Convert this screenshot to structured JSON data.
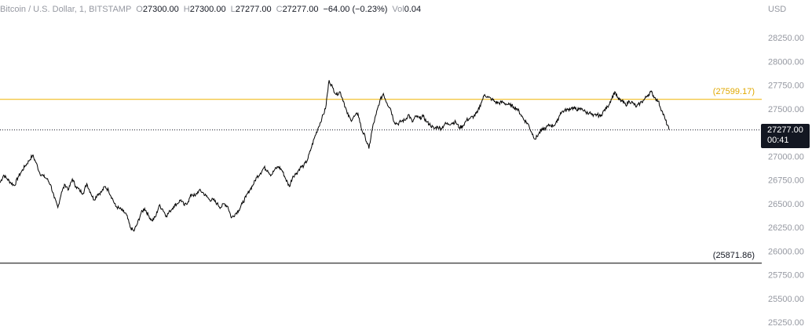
{
  "header": {
    "symbol": "Bitcoin / U.S. Dollar, 1, BITSTAMP",
    "o_label": "O",
    "o_value": "27300.00",
    "h_label": "H",
    "h_value": "27300.00",
    "l_label": "L",
    "l_value": "27277.00",
    "c_label": "C",
    "c_value": "27277.00",
    "change": "−64.00 (−0.23%)",
    "vol_label": "Vol",
    "vol_value": "0.04"
  },
  "axis": {
    "currency": "USD"
  },
  "price_tag": {
    "price": "27277.00",
    "countdown": "00:41"
  },
  "colors": {
    "line": "#000000",
    "hline_upper": "#f0b400",
    "hline_lower": "#000000",
    "text_muted": "#9598a1",
    "tag_bg": "#131722"
  },
  "chart_data": {
    "type": "line",
    "series": [
      {
        "values": [
          26720,
          26800,
          26760,
          26720,
          26690,
          26780,
          26840,
          26900,
          26950,
          27010,
          26930,
          26820,
          26790,
          26760,
          26700,
          26560,
          26460,
          26620,
          26700,
          26650,
          26760,
          26680,
          26640,
          26610,
          26710,
          26620,
          26540,
          26600,
          26620,
          26680,
          26640,
          26560,
          26470,
          26450,
          26420,
          26380,
          26250,
          26210,
          26290,
          26400,
          26450,
          26380,
          26320,
          26360,
          26480,
          26440,
          26370,
          26420,
          26470,
          26500,
          26540,
          26480,
          26520,
          26600,
          26580,
          26640,
          26620,
          26580,
          26540,
          26540,
          26500,
          26460,
          26500,
          26470,
          26350,
          26390,
          26430,
          26500,
          26570,
          26640,
          26700,
          26780,
          26820,
          26880,
          26850,
          26800,
          26860,
          26890,
          26850,
          26760,
          26680,
          26790,
          26820,
          26880,
          26900,
          26960,
          27080,
          27200,
          27300,
          27400,
          27500,
          27800,
          27720,
          27650,
          27680,
          27580,
          27450,
          27380,
          27420,
          27450,
          27280,
          27200,
          27080,
          27300,
          27440,
          27580,
          27660,
          27560,
          27500,
          27360,
          27340,
          27370,
          27380,
          27440,
          27360,
          27420,
          27400,
          27420,
          27360,
          27330,
          27290,
          27310,
          27290,
          27340,
          27340,
          27350,
          27360,
          27300,
          27320,
          27380,
          27400,
          27420,
          27460,
          27560,
          27650,
          27620,
          27600,
          27570,
          27560,
          27570,
          27550,
          27540,
          27520,
          27500,
          27440,
          27380,
          27340,
          27250,
          27180,
          27240,
          27280,
          27300,
          27330,
          27320,
          27360,
          27460,
          27480,
          27490,
          27510,
          27500,
          27490,
          27500,
          27460,
          27460,
          27420,
          27440,
          27420,
          27480,
          27520,
          27600,
          27680,
          27600,
          27580,
          27540,
          27580,
          27560,
          27520,
          27560,
          27590,
          27640,
          27680,
          27620,
          27580,
          27480,
          27380,
          27277
        ]
      }
    ],
    "ylim": [
      25250,
      28250
    ],
    "yticks": [
      28250,
      28000,
      27750,
      27500,
      27250,
      27000,
      26750,
      26500,
      26250,
      26000,
      25750,
      25500,
      25250
    ],
    "ytick_labels": [
      "28250.00",
      "28000.00",
      "27750.00",
      "27500.00",
      "27250.00",
      "27000.00",
      "26750.00",
      "26500.00",
      "26250.00",
      "26000.00",
      "25750.00",
      "25500.00",
      "25250.00"
    ],
    "hlines": [
      {
        "value": 27599.17,
        "label": "(27599.17)",
        "color": "#f0b400"
      },
      {
        "value": 25871.86,
        "label": "(25871.86)",
        "color": "#000000"
      }
    ],
    "last_value": 27277,
    "grid": false
  }
}
